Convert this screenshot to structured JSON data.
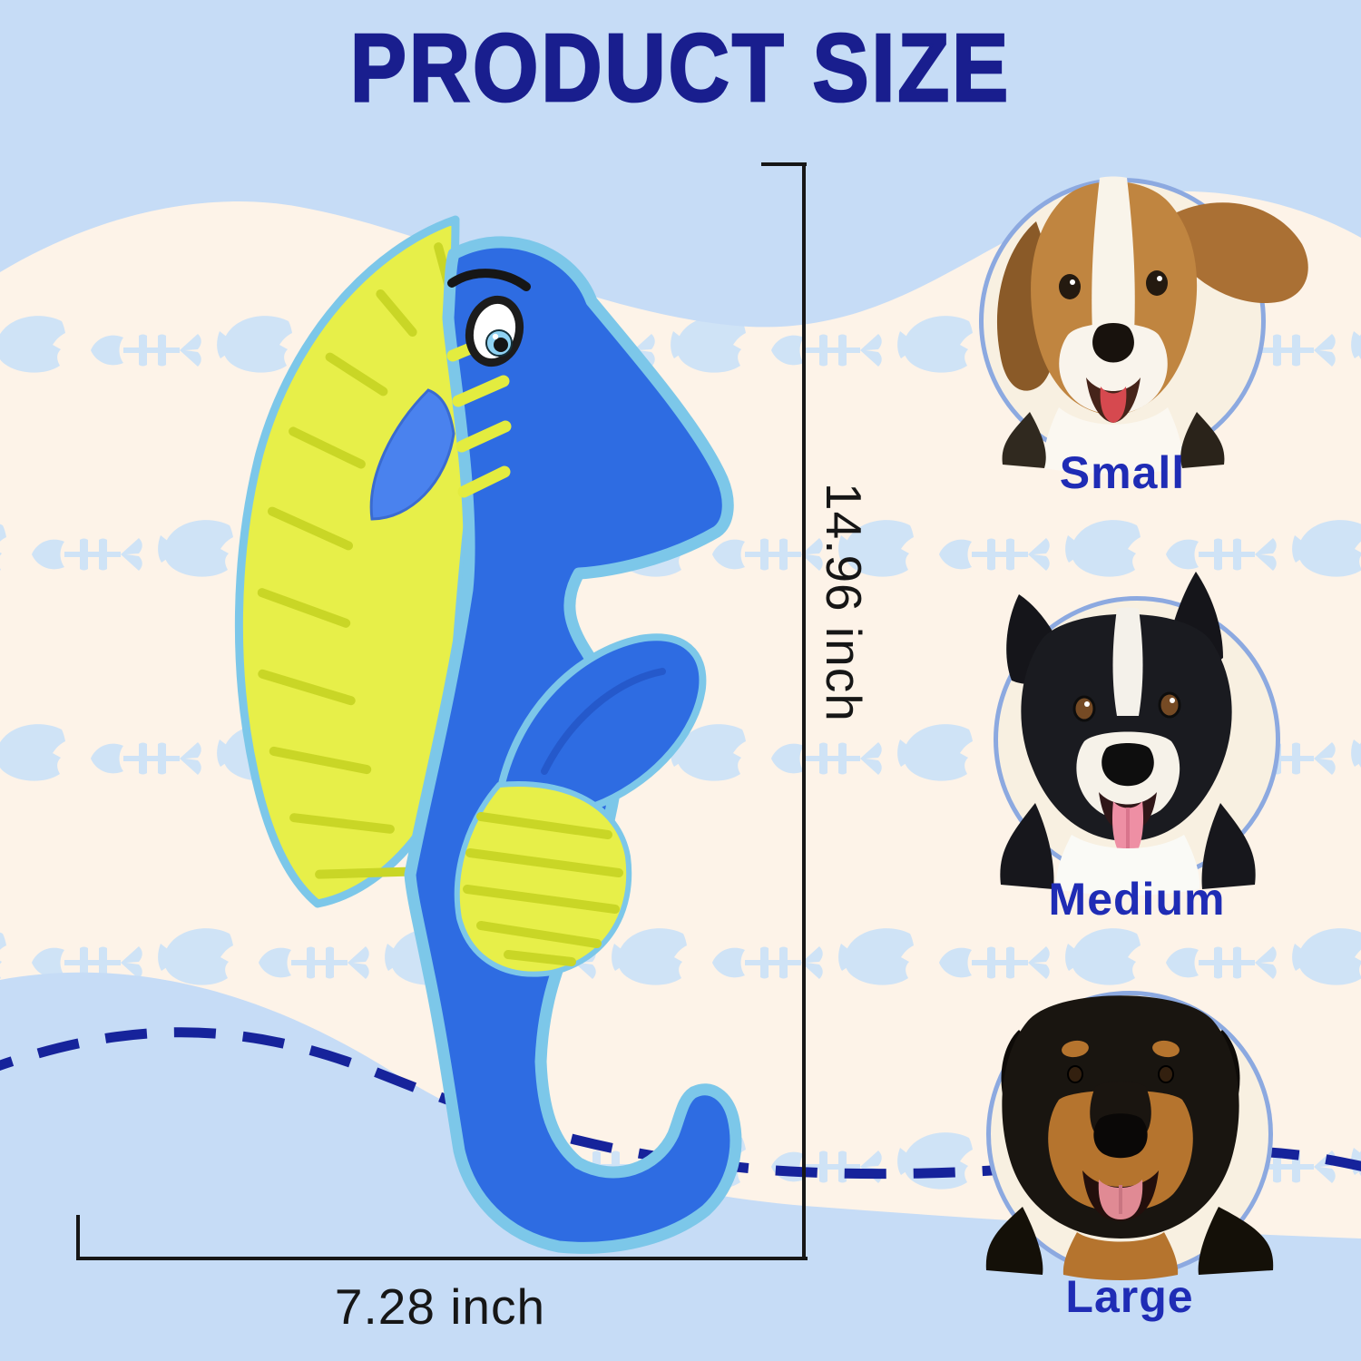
{
  "title": "PRODUCT SIZE",
  "toy": {
    "name": "blue seahorse plush dog toy",
    "height_label": "14.96 inch",
    "width_label": "7.28 inch"
  },
  "sizes": [
    {
      "label": "Small",
      "photo": "beagle-dog-photo"
    },
    {
      "label": "Medium",
      "photo": "border-collie-dog-photo"
    },
    {
      "label": "Large",
      "photo": "rottweiler-dog-photo"
    }
  ],
  "pattern_motifs": [
    "fish-icon",
    "fishbone-icon"
  ],
  "colors": {
    "top_band": "#c6dcf6",
    "cream_band": "#fdf3e8",
    "pattern_motif": "#cfe3f6",
    "title_navy": "#191e8e",
    "label_blue": "#1f2cb5",
    "dash_navy": "#16239b",
    "measure_line": "#161616",
    "circle_ring": "#8ca9e0",
    "toy_body_blue": "#2e6ce2",
    "toy_trim_cyan": "#7cc7e9",
    "toy_crest_yellow": "#e7ef49",
    "toy_ridge_yellow": "#c9d626",
    "toy_fin_blue": "#4a82ee",
    "eye_iris_blue": "#8fd2f2"
  }
}
